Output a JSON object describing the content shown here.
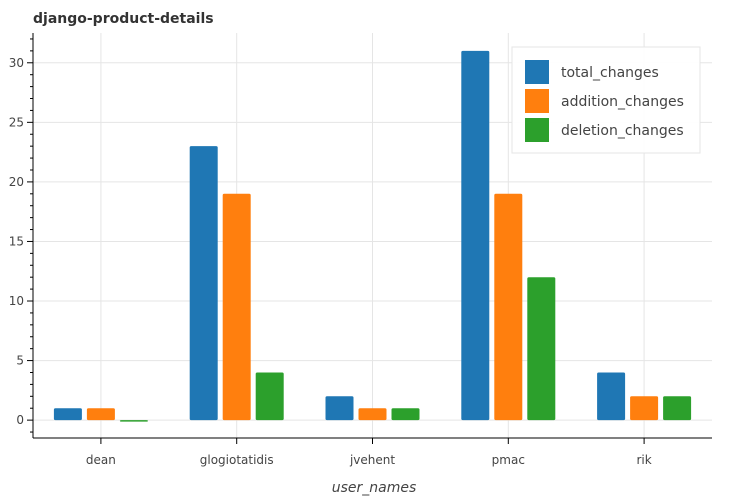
{
  "chart_data": {
    "type": "bar",
    "title": "django-product-details",
    "xlabel": "user_names",
    "ylabel": "",
    "categories": [
      "dean",
      "glogiotatidis",
      "jvehent",
      "pmac",
      "rik"
    ],
    "series": [
      {
        "name": "total_changes",
        "color": "#1f77b4",
        "values": [
          1,
          23,
          2,
          31,
          4
        ]
      },
      {
        "name": "addition_changes",
        "color": "#ff7f0e",
        "values": [
          1,
          19,
          1,
          19,
          2
        ]
      },
      {
        "name": "deletion_changes",
        "color": "#2ca02c",
        "values": [
          0,
          4,
          1,
          12,
          2
        ]
      }
    ],
    "ylim": [
      -1.5,
      32.5
    ],
    "yticks": [
      0,
      5,
      10,
      15,
      20,
      25,
      30
    ],
    "grid": true,
    "legend_position": "top-right"
  }
}
